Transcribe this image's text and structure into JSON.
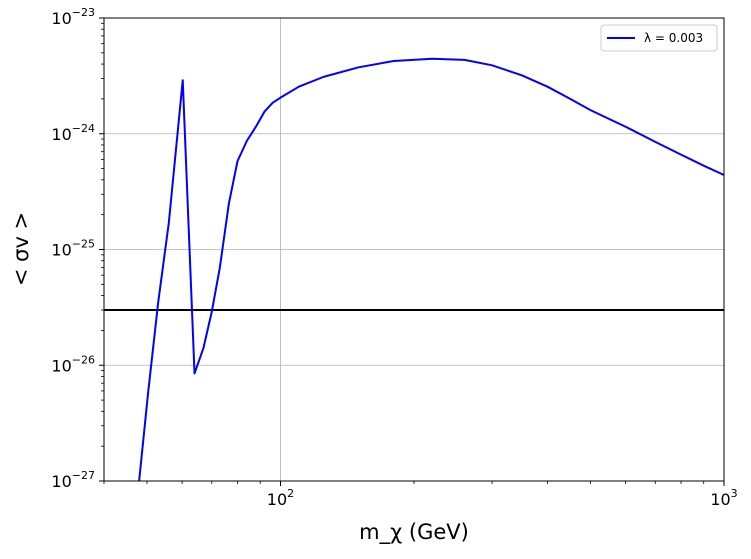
{
  "chart_data": {
    "type": "line",
    "title": "",
    "xlabel": "m_χ (GeV)",
    "ylabel": "< σv >",
    "xscale": "log",
    "yscale": "log",
    "xlim": [
      40,
      1000
    ],
    "ylim": [
      1e-27,
      1e-23
    ],
    "grid": true,
    "legend": "top-right",
    "x_ticks": [
      {
        "value": 100,
        "base": "10",
        "exp": "2"
      },
      {
        "value": 1000,
        "base": "10",
        "exp": "3"
      }
    ],
    "y_ticks": [
      {
        "value": 1e-27,
        "base": "10",
        "exp": "−27"
      },
      {
        "value": 1e-26,
        "base": "10",
        "exp": "−26"
      },
      {
        "value": 1e-25,
        "base": "10",
        "exp": "−25"
      },
      {
        "value": 1e-24,
        "base": "10",
        "exp": "−24"
      },
      {
        "value": 1e-23,
        "base": "10",
        "exp": "−23"
      }
    ],
    "series": [
      {
        "name": "λ = 0.003",
        "color": "#0000ff",
        "points": [
          [
            48.0,
            1e-27
          ],
          [
            50.3,
            5.8e-27
          ],
          [
            53.0,
            3.5e-26
          ],
          [
            56.0,
            1.7e-25
          ],
          [
            60.2,
            2.9e-24
          ],
          [
            64.0,
            8.5e-27
          ],
          [
            67.0,
            1.4e-26
          ],
          [
            70.0,
            2.9e-26
          ],
          [
            73.0,
            7e-26
          ],
          [
            76.5,
            2.5e-25
          ],
          [
            80.0,
            5.8e-25
          ],
          [
            84.0,
            8.7e-25
          ],
          [
            88.0,
            1.15e-24
          ],
          [
            92.0,
            1.55e-24
          ],
          [
            96.0,
            1.85e-24
          ],
          [
            100.0,
            2.05e-24
          ],
          [
            110.0,
            2.55e-24
          ],
          [
            125.0,
            3.1e-24
          ],
          [
            150.0,
            3.75e-24
          ],
          [
            180.0,
            4.25e-24
          ],
          [
            220.0,
            4.45e-24
          ],
          [
            260.0,
            4.35e-24
          ],
          [
            300.0,
            3.9e-24
          ],
          [
            350.0,
            3.2e-24
          ],
          [
            400.0,
            2.55e-24
          ],
          [
            450.0,
            2e-24
          ],
          [
            500.0,
            1.6e-24
          ],
          [
            600.0,
            1.15e-24
          ],
          [
            700.0,
            8.5e-25
          ],
          [
            800.0,
            6.6e-25
          ],
          [
            900.0,
            5.3e-25
          ],
          [
            1000.0,
            4.4e-25
          ]
        ]
      }
    ],
    "hlines": [
      {
        "y": 3e-26,
        "color": "#000000"
      }
    ]
  }
}
